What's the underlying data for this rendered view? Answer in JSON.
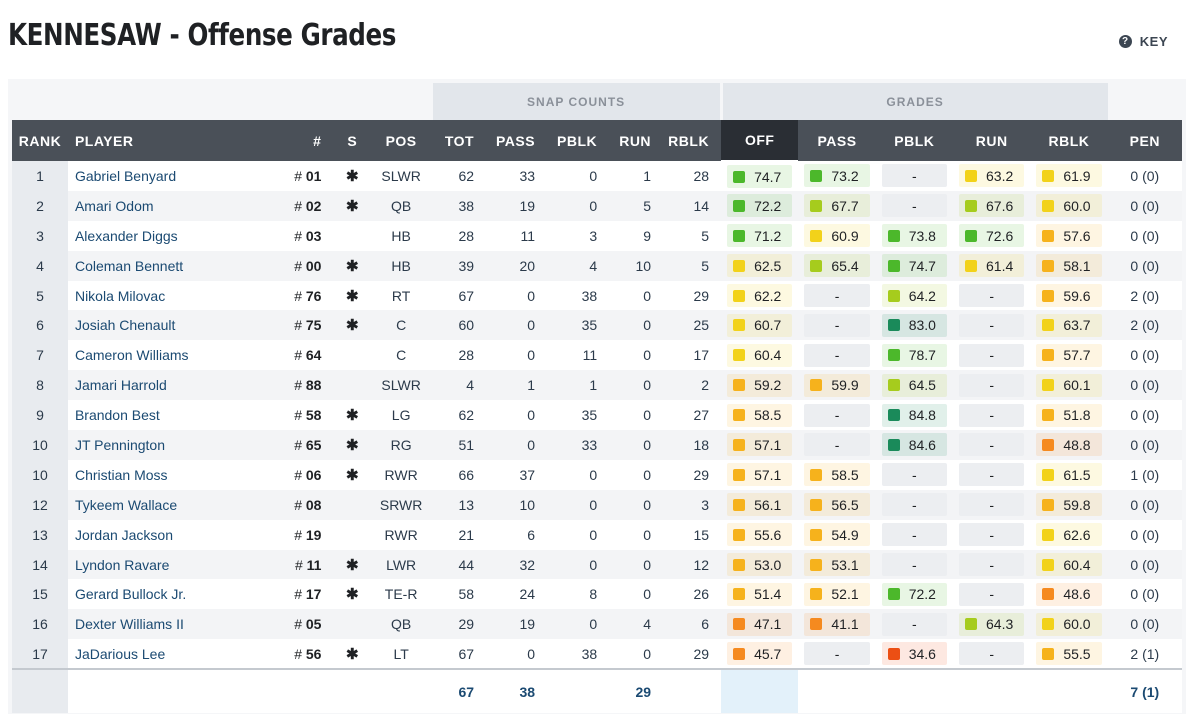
{
  "page": {
    "title": "KENNESAW - Offense Grades",
    "key_label": "KEY"
  },
  "groups": {
    "snap_counts": "SNAP COUNTS",
    "grades": "GRADES"
  },
  "columns": {
    "rank": "RANK",
    "player": "PLAYER",
    "num": "#",
    "s": "S",
    "pos": "POS",
    "tot": "TOT",
    "pass": "PASS",
    "pblk": "PBLK",
    "run": "RUN",
    "rblk": "RBLK",
    "g_off": "OFF",
    "g_pass": "PASS",
    "g_pblk": "PBLK",
    "g_run": "RUN",
    "g_rblk": "RBLK",
    "pen": "PEN"
  },
  "grade_colors": {
    "dark_green": "#1a8a5a",
    "green": "#4cb82b",
    "light_green": "#a6cc1d",
    "yellow": "#f2d21a",
    "amber": "#f6b21c",
    "orange": "#f58a1f",
    "red_orange": "#ec4f14"
  },
  "rows": [
    {
      "rank": "1",
      "player": "Gabriel Benyard",
      "num": "01",
      "starter": true,
      "pos": "SLWR",
      "tot": "62",
      "pass": "33",
      "pblk": "0",
      "run": "1",
      "rblk": "28",
      "off": "74.7",
      "gpass": "73.2",
      "gpblk": "-",
      "grun": "63.2",
      "grblk": "61.9",
      "pen": "0 (0)"
    },
    {
      "rank": "2",
      "player": "Amari Odom",
      "num": "02",
      "starter": true,
      "pos": "QB",
      "tot": "38",
      "pass": "19",
      "pblk": "0",
      "run": "5",
      "rblk": "14",
      "off": "72.2",
      "gpass": "67.7",
      "gpblk": "-",
      "grun": "67.6",
      "grblk": "60.0",
      "pen": "0 (0)"
    },
    {
      "rank": "3",
      "player": "Alexander Diggs",
      "num": "03",
      "starter": false,
      "pos": "HB",
      "tot": "28",
      "pass": "11",
      "pblk": "3",
      "run": "9",
      "rblk": "5",
      "off": "71.2",
      "gpass": "60.9",
      "gpblk": "73.8",
      "grun": "72.6",
      "grblk": "57.6",
      "pen": "0 (0)"
    },
    {
      "rank": "4",
      "player": "Coleman Bennett",
      "num": "00",
      "starter": true,
      "pos": "HB",
      "tot": "39",
      "pass": "20",
      "pblk": "4",
      "run": "10",
      "rblk": "5",
      "off": "62.5",
      "gpass": "65.4",
      "gpblk": "74.7",
      "grun": "61.4",
      "grblk": "58.1",
      "pen": "0 (0)"
    },
    {
      "rank": "5",
      "player": "Nikola Milovac",
      "num": "76",
      "starter": true,
      "pos": "RT",
      "tot": "67",
      "pass": "0",
      "pblk": "38",
      "run": "0",
      "rblk": "29",
      "off": "62.2",
      "gpass": "-",
      "gpblk": "64.2",
      "grun": "-",
      "grblk": "59.6",
      "pen": "2 (0)"
    },
    {
      "rank": "6",
      "player": "Josiah Chenault",
      "num": "75",
      "starter": true,
      "pos": "C",
      "tot": "60",
      "pass": "0",
      "pblk": "35",
      "run": "0",
      "rblk": "25",
      "off": "60.7",
      "gpass": "-",
      "gpblk": "83.0",
      "grun": "-",
      "grblk": "63.7",
      "pen": "2 (0)"
    },
    {
      "rank": "7",
      "player": "Cameron Williams",
      "num": "64",
      "starter": false,
      "pos": "C",
      "tot": "28",
      "pass": "0",
      "pblk": "11",
      "run": "0",
      "rblk": "17",
      "off": "60.4",
      "gpass": "-",
      "gpblk": "78.7",
      "grun": "-",
      "grblk": "57.7",
      "pen": "0 (0)"
    },
    {
      "rank": "8",
      "player": "Jamari Harrold",
      "num": "88",
      "starter": false,
      "pos": "SLWR",
      "tot": "4",
      "pass": "1",
      "pblk": "1",
      "run": "0",
      "rblk": "2",
      "off": "59.2",
      "gpass": "59.9",
      "gpblk": "64.5",
      "grun": "-",
      "grblk": "60.1",
      "pen": "0 (0)"
    },
    {
      "rank": "9",
      "player": "Brandon Best",
      "num": "58",
      "starter": true,
      "pos": "LG",
      "tot": "62",
      "pass": "0",
      "pblk": "35",
      "run": "0",
      "rblk": "27",
      "off": "58.5",
      "gpass": "-",
      "gpblk": "84.8",
      "grun": "-",
      "grblk": "51.8",
      "pen": "0 (0)"
    },
    {
      "rank": "10",
      "player": "JT Pennington",
      "num": "65",
      "starter": true,
      "pos": "RG",
      "tot": "51",
      "pass": "0",
      "pblk": "33",
      "run": "0",
      "rblk": "18",
      "off": "57.1",
      "gpass": "-",
      "gpblk": "84.6",
      "grun": "-",
      "grblk": "48.8",
      "pen": "0 (0)"
    },
    {
      "rank": "10",
      "player": "Christian Moss",
      "num": "06",
      "starter": true,
      "pos": "RWR",
      "tot": "66",
      "pass": "37",
      "pblk": "0",
      "run": "0",
      "rblk": "29",
      "off": "57.1",
      "gpass": "58.5",
      "gpblk": "-",
      "grun": "-",
      "grblk": "61.5",
      "pen": "1 (0)"
    },
    {
      "rank": "12",
      "player": "Tykeem Wallace",
      "num": "08",
      "starter": false,
      "pos": "SRWR",
      "tot": "13",
      "pass": "10",
      "pblk": "0",
      "run": "0",
      "rblk": "3",
      "off": "56.1",
      "gpass": "56.5",
      "gpblk": "-",
      "grun": "-",
      "grblk": "59.8",
      "pen": "0 (0)"
    },
    {
      "rank": "13",
      "player": "Jordan Jackson",
      "num": "19",
      "starter": false,
      "pos": "RWR",
      "tot": "21",
      "pass": "6",
      "pblk": "0",
      "run": "0",
      "rblk": "15",
      "off": "55.6",
      "gpass": "54.9",
      "gpblk": "-",
      "grun": "-",
      "grblk": "62.6",
      "pen": "0 (0)"
    },
    {
      "rank": "14",
      "player": "Lyndon Ravare",
      "num": "11",
      "starter": true,
      "pos": "LWR",
      "tot": "44",
      "pass": "32",
      "pblk": "0",
      "run": "0",
      "rblk": "12",
      "off": "53.0",
      "gpass": "53.1",
      "gpblk": "-",
      "grun": "-",
      "grblk": "60.4",
      "pen": "0 (0)"
    },
    {
      "rank": "15",
      "player": "Gerard Bullock Jr.",
      "num": "17",
      "starter": true,
      "pos": "TE-R",
      "tot": "58",
      "pass": "24",
      "pblk": "8",
      "run": "0",
      "rblk": "26",
      "off": "51.4",
      "gpass": "52.1",
      "gpblk": "72.2",
      "grun": "-",
      "grblk": "48.6",
      "pen": "0 (0)"
    },
    {
      "rank": "16",
      "player": "Dexter Williams II",
      "num": "05",
      "starter": false,
      "pos": "QB",
      "tot": "29",
      "pass": "19",
      "pblk": "0",
      "run": "4",
      "rblk": "6",
      "off": "47.1",
      "gpass": "41.1",
      "gpblk": "-",
      "grun": "64.3",
      "grblk": "60.0",
      "pen": "0 (0)"
    },
    {
      "rank": "17",
      "player": "JaDarious Lee",
      "num": "56",
      "starter": true,
      "pos": "LT",
      "tot": "67",
      "pass": "0",
      "pblk": "38",
      "run": "0",
      "rblk": "29",
      "off": "45.7",
      "gpass": "-",
      "gpblk": "34.6",
      "grun": "-",
      "grblk": "55.5",
      "pen": "2 (1)"
    }
  ],
  "totals": {
    "tot": "67",
    "pass": "38",
    "run": "29",
    "pen": "7 (1)"
  }
}
